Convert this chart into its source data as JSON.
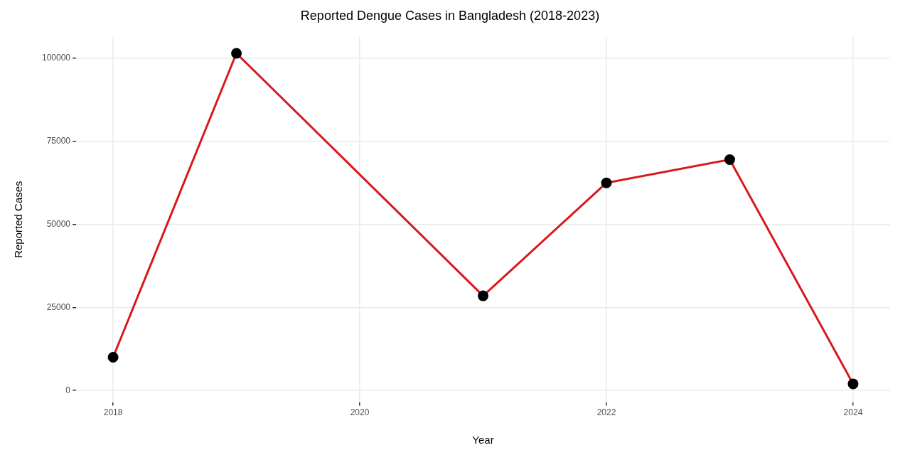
{
  "chart_data": {
    "type": "line",
    "title": "Reported Dengue Cases in Bangladesh (2018-2023)",
    "xlabel": "Year",
    "ylabel": "Reported Cases",
    "x": [
      2018,
      2019,
      2021,
      2022,
      2023,
      2024
    ],
    "series": [
      {
        "color": "#d7191c",
        "values": [
          10000,
          101500,
          28500,
          62500,
          69500,
          2000
        ]
      }
    ],
    "marker": "circle",
    "line_style": "solid",
    "xlim": [
      2017.7,
      2024.3
    ],
    "xticks": [
      2018,
      2020,
      2022,
      2024
    ],
    "ylim": [
      -3500,
      106500
    ],
    "yticks": [
      0,
      25000,
      50000,
      75000,
      100000
    ],
    "grid": true,
    "legend": false
  }
}
